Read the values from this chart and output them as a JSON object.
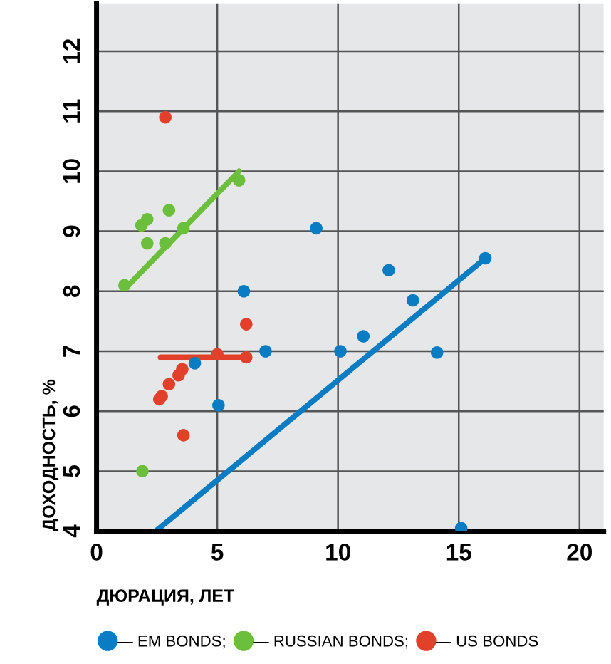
{
  "chart_data": {
    "type": "scatter",
    "xlabel": "ДЮРАЦИЯ, ЛЕТ",
    "ylabel": "ДОХОДНОСТЬ, %",
    "xlim": [
      0,
      21
    ],
    "xticks": [
      0,
      5,
      10,
      15,
      20
    ],
    "ylim": [
      4,
      12.8
    ],
    "yticks": [
      4,
      5,
      6,
      7,
      8,
      9,
      10,
      11,
      12
    ],
    "grid": true,
    "legend": "bottom",
    "series": [
      {
        "name": "— EM BONDS;",
        "color": "#0a7cc4",
        "marker": "circle",
        "x": [
          9.1,
          6.1,
          7.0,
          10.1,
          11.05,
          12.1,
          13.1,
          14.1,
          16.1,
          15.1,
          5.05,
          4.07
        ],
        "values": [
          9.05,
          8.0,
          7.0,
          7.0,
          7.25,
          8.35,
          7.85,
          6.98,
          8.55,
          4.05,
          6.1,
          6.8
        ]
      },
      {
        "name": "— RUSSIAN BONDS;",
        "color": "#6cbf3c",
        "marker": "circle",
        "x": [
          1.16,
          1.86,
          2.1,
          2.1,
          2.85,
          3.0,
          3.6,
          5.9,
          1.9
        ],
        "values": [
          8.1,
          9.1,
          9.2,
          8.8,
          8.8,
          9.35,
          9.05,
          9.85,
          5.0
        ]
      },
      {
        "name": "— US BONDS",
        "color": "#e2402a",
        "marker": "circle",
        "x": [
          2.85,
          6.2,
          5.0,
          6.2,
          3.55,
          3.4,
          3.0,
          2.7,
          2.6,
          3.6
        ],
        "values": [
          10.9,
          7.45,
          6.95,
          6.9,
          6.7,
          6.6,
          6.45,
          6.25,
          6.2,
          5.6
        ]
      },
      {
        "type": "line",
        "color": "#0a7cc4",
        "x": [
          2.45,
          16.1
        ],
        "values": [
          4.0,
          8.55
        ]
      },
      {
        "type": "line",
        "color": "#6cbf3c",
        "x": [
          1.2,
          5.9
        ],
        "values": [
          8.05,
          10.0
        ]
      },
      {
        "type": "line",
        "color": "#e2402a",
        "x": [
          2.65,
          6.1
        ],
        "values": [
          6.9,
          6.9
        ]
      }
    ]
  }
}
